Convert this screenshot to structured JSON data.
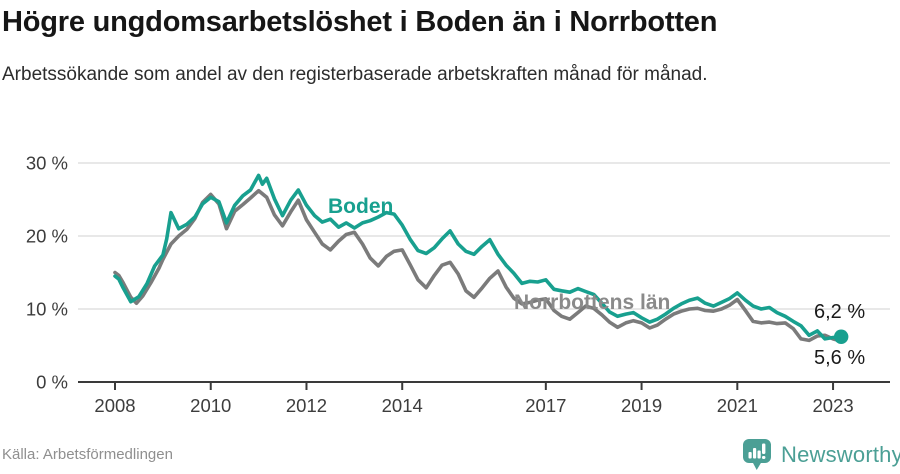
{
  "header": {
    "title": "Högre ungdomsarbetslöshet i Boden än i Norrbotten",
    "subtitle": "Arbetssökande som andel av den registerbaserade arbetskraften månad för månad."
  },
  "chart_data": {
    "type": "line",
    "title": "Högre ungdomsarbetslöshet i Boden än i Norrbotten",
    "subtitle": "Arbetssökande som andel av den registerbaserade arbetskraften månad för månad.",
    "unit": "%",
    "grid": "horizontal",
    "legend_position": "inline-labels",
    "xlim": [
      2007.6,
      2023.8
    ],
    "ylim": [
      0,
      31
    ],
    "x_ticks": [
      {
        "year": 2008,
        "label": "2008"
      },
      {
        "year": 2010,
        "label": "2010"
      },
      {
        "year": 2012,
        "label": "2012"
      },
      {
        "year": 2014,
        "label": "2014"
      },
      {
        "year": 2017,
        "label": "2017"
      },
      {
        "year": 2019,
        "label": "2019"
      },
      {
        "year": 2021,
        "label": "2021"
      },
      {
        "year": 2023,
        "label": "2023"
      }
    ],
    "y_ticks": [
      {
        "value": 0,
        "label": "0 %"
      },
      {
        "value": 10,
        "label": "10 %"
      },
      {
        "value": 20,
        "label": "20 %"
      },
      {
        "value": 30,
        "label": "30 %"
      }
    ],
    "series": [
      {
        "name": "Boden",
        "color": "#18a08f",
        "end_label": "6,2 %",
        "end_value": 6.2,
        "end_dot": true,
        "points": [
          [
            2008.0,
            14.5
          ],
          [
            2008.08,
            14.1
          ],
          [
            2008.17,
            12.9
          ],
          [
            2008.33,
            11.0
          ],
          [
            2008.5,
            11.7
          ],
          [
            2008.67,
            13.5
          ],
          [
            2008.83,
            15.9
          ],
          [
            2009.0,
            17.4
          ],
          [
            2009.08,
            19.6
          ],
          [
            2009.17,
            23.2
          ],
          [
            2009.33,
            21.0
          ],
          [
            2009.5,
            21.6
          ],
          [
            2009.67,
            22.6
          ],
          [
            2009.83,
            24.4
          ],
          [
            2010.0,
            25.3
          ],
          [
            2010.17,
            24.7
          ],
          [
            2010.33,
            21.8
          ],
          [
            2010.5,
            24.2
          ],
          [
            2010.67,
            25.5
          ],
          [
            2010.83,
            26.3
          ],
          [
            2011.0,
            28.3
          ],
          [
            2011.08,
            27.1
          ],
          [
            2011.17,
            27.9
          ],
          [
            2011.33,
            25.1
          ],
          [
            2011.5,
            22.8
          ],
          [
            2011.67,
            24.9
          ],
          [
            2011.83,
            26.3
          ],
          [
            2012.0,
            24.2
          ],
          [
            2012.17,
            22.8
          ],
          [
            2012.33,
            21.9
          ],
          [
            2012.5,
            22.3
          ],
          [
            2012.67,
            21.2
          ],
          [
            2012.83,
            21.8
          ],
          [
            2013.0,
            21.1
          ],
          [
            2013.17,
            21.8
          ],
          [
            2013.33,
            22.1
          ],
          [
            2013.5,
            22.6
          ],
          [
            2013.67,
            23.2
          ],
          [
            2013.83,
            23.0
          ],
          [
            2014.0,
            21.5
          ],
          [
            2014.17,
            19.5
          ],
          [
            2014.33,
            18.0
          ],
          [
            2014.5,
            17.6
          ],
          [
            2014.67,
            18.4
          ],
          [
            2014.83,
            19.6
          ],
          [
            2015.0,
            20.7
          ],
          [
            2015.17,
            18.9
          ],
          [
            2015.33,
            17.9
          ],
          [
            2015.5,
            17.5
          ],
          [
            2015.67,
            18.6
          ],
          [
            2015.83,
            19.5
          ],
          [
            2016.0,
            17.5
          ],
          [
            2016.17,
            16.0
          ],
          [
            2016.33,
            14.9
          ],
          [
            2016.5,
            13.5
          ],
          [
            2016.67,
            13.8
          ],
          [
            2016.83,
            13.7
          ],
          [
            2017.0,
            14.0
          ],
          [
            2017.17,
            12.7
          ],
          [
            2017.33,
            12.5
          ],
          [
            2017.5,
            12.3
          ],
          [
            2017.67,
            12.8
          ],
          [
            2017.83,
            12.4
          ],
          [
            2018.0,
            12.0
          ],
          [
            2018.17,
            10.8
          ],
          [
            2018.33,
            9.6
          ],
          [
            2018.5,
            9.0
          ],
          [
            2018.67,
            9.3
          ],
          [
            2018.83,
            9.5
          ],
          [
            2019.0,
            8.8
          ],
          [
            2019.17,
            8.2
          ],
          [
            2019.33,
            8.6
          ],
          [
            2019.5,
            9.3
          ],
          [
            2019.67,
            10.1
          ],
          [
            2019.83,
            10.7
          ],
          [
            2020.0,
            11.2
          ],
          [
            2020.17,
            11.5
          ],
          [
            2020.33,
            10.8
          ],
          [
            2020.5,
            10.4
          ],
          [
            2020.67,
            10.9
          ],
          [
            2020.83,
            11.4
          ],
          [
            2021.0,
            12.2
          ],
          [
            2021.17,
            11.2
          ],
          [
            2021.33,
            10.4
          ],
          [
            2021.5,
            10.0
          ],
          [
            2021.67,
            10.2
          ],
          [
            2021.83,
            9.5
          ],
          [
            2022.0,
            9.0
          ],
          [
            2022.17,
            8.3
          ],
          [
            2022.33,
            7.7
          ],
          [
            2022.5,
            6.4
          ],
          [
            2022.67,
            7.0
          ],
          [
            2022.83,
            5.9
          ],
          [
            2023.0,
            6.1
          ],
          [
            2023.17,
            6.2
          ]
        ]
      },
      {
        "name": "Norrbottens län",
        "color": "#7b7b7b",
        "end_label": "5,6 %",
        "end_value": 5.6,
        "end_dot": false,
        "points": [
          [
            2008.0,
            15.0
          ],
          [
            2008.08,
            14.6
          ],
          [
            2008.17,
            13.6
          ],
          [
            2008.33,
            11.6
          ],
          [
            2008.45,
            10.8
          ],
          [
            2008.58,
            11.8
          ],
          [
            2008.75,
            13.6
          ],
          [
            2008.92,
            15.6
          ],
          [
            2009.0,
            16.8
          ],
          [
            2009.17,
            18.9
          ],
          [
            2009.33,
            20.0
          ],
          [
            2009.5,
            20.9
          ],
          [
            2009.67,
            22.4
          ],
          [
            2009.83,
            24.6
          ],
          [
            2010.0,
            25.7
          ],
          [
            2010.17,
            24.4
          ],
          [
            2010.33,
            21.0
          ],
          [
            2010.5,
            23.4
          ],
          [
            2010.67,
            24.3
          ],
          [
            2010.83,
            25.2
          ],
          [
            2011.0,
            26.2
          ],
          [
            2011.17,
            25.3
          ],
          [
            2011.33,
            22.9
          ],
          [
            2011.5,
            21.4
          ],
          [
            2011.67,
            23.3
          ],
          [
            2011.83,
            24.9
          ],
          [
            2012.0,
            22.2
          ],
          [
            2012.17,
            20.5
          ],
          [
            2012.33,
            18.9
          ],
          [
            2012.5,
            18.1
          ],
          [
            2012.67,
            19.3
          ],
          [
            2012.83,
            20.2
          ],
          [
            2013.0,
            20.5
          ],
          [
            2013.17,
            18.9
          ],
          [
            2013.33,
            17.0
          ],
          [
            2013.5,
            15.9
          ],
          [
            2013.67,
            17.2
          ],
          [
            2013.83,
            17.9
          ],
          [
            2014.0,
            18.1
          ],
          [
            2014.17,
            16.0
          ],
          [
            2014.33,
            14.0
          ],
          [
            2014.5,
            12.9
          ],
          [
            2014.67,
            14.6
          ],
          [
            2014.83,
            16.0
          ],
          [
            2015.0,
            16.4
          ],
          [
            2015.17,
            14.8
          ],
          [
            2015.33,
            12.5
          ],
          [
            2015.5,
            11.6
          ],
          [
            2015.67,
            12.9
          ],
          [
            2015.83,
            14.2
          ],
          [
            2016.0,
            15.2
          ],
          [
            2016.17,
            13.0
          ],
          [
            2016.33,
            11.5
          ],
          [
            2016.5,
            10.7
          ],
          [
            2016.67,
            10.9
          ],
          [
            2016.83,
            11.2
          ],
          [
            2017.0,
            11.4
          ],
          [
            2017.17,
            9.8
          ],
          [
            2017.33,
            9.0
          ],
          [
            2017.5,
            8.6
          ],
          [
            2017.67,
            9.5
          ],
          [
            2017.83,
            10.4
          ],
          [
            2018.0,
            10.1
          ],
          [
            2018.17,
            9.2
          ],
          [
            2018.33,
            8.2
          ],
          [
            2018.5,
            7.5
          ],
          [
            2018.67,
            8.1
          ],
          [
            2018.83,
            8.4
          ],
          [
            2019.0,
            8.1
          ],
          [
            2019.17,
            7.4
          ],
          [
            2019.33,
            7.8
          ],
          [
            2019.5,
            8.6
          ],
          [
            2019.67,
            9.3
          ],
          [
            2019.83,
            9.7
          ],
          [
            2020.0,
            10.0
          ],
          [
            2020.17,
            10.1
          ],
          [
            2020.33,
            9.8
          ],
          [
            2020.5,
            9.7
          ],
          [
            2020.67,
            10.0
          ],
          [
            2020.83,
            10.5
          ],
          [
            2021.0,
            11.3
          ],
          [
            2021.17,
            9.8
          ],
          [
            2021.33,
            8.3
          ],
          [
            2021.5,
            8.1
          ],
          [
            2021.67,
            8.2
          ],
          [
            2021.83,
            8.0
          ],
          [
            2022.0,
            8.1
          ],
          [
            2022.17,
            7.3
          ],
          [
            2022.33,
            5.9
          ],
          [
            2022.5,
            5.7
          ],
          [
            2022.67,
            6.3
          ],
          [
            2022.83,
            6.4
          ],
          [
            2023.0,
            5.9
          ],
          [
            2023.17,
            5.6
          ]
        ]
      }
    ],
    "colors": {
      "boden": "#18a08f",
      "norrbotten": "#7b7b7b",
      "gridline": "#dadada",
      "axis": "#3a3a3a",
      "axis_text": "#3d3d3d"
    }
  },
  "footer": {
    "source": "Källa: Arbetsförmedlingen",
    "brand": "Newsworthy",
    "brand_color": "#4b9f95"
  }
}
